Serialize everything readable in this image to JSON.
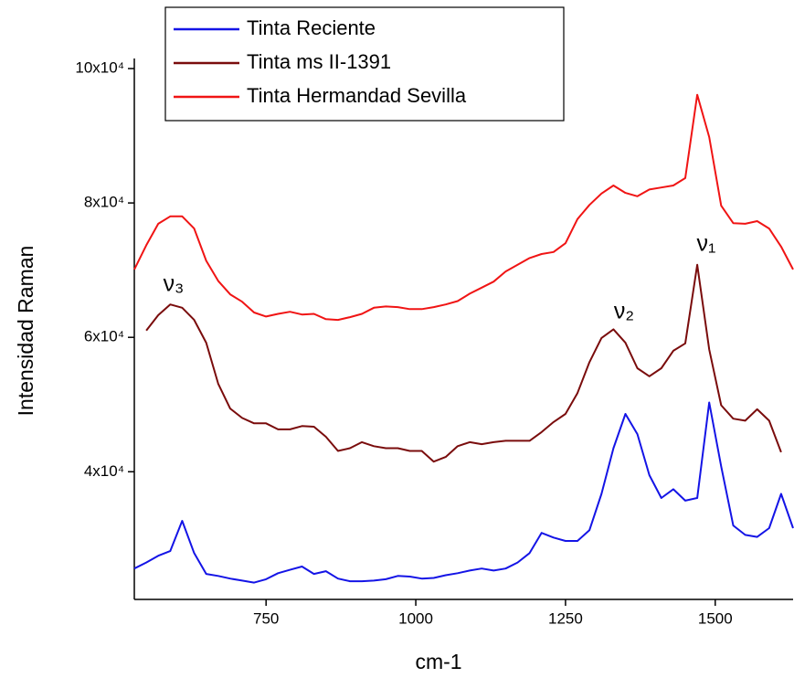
{
  "chart_data": {
    "type": "line",
    "x_label": "cm-1",
    "y_label": "Intensidad Raman",
    "x": [
      530,
      550,
      570,
      590,
      610,
      630,
      650,
      670,
      690,
      710,
      730,
      750,
      770,
      790,
      810,
      830,
      850,
      870,
      890,
      910,
      930,
      950,
      970,
      990,
      1010,
      1030,
      1050,
      1070,
      1090,
      1110,
      1130,
      1150,
      1170,
      1190,
      1210,
      1230,
      1250,
      1270,
      1290,
      1310,
      1330,
      1350,
      1370,
      1390,
      1410,
      1430,
      1450,
      1470,
      1490,
      1510,
      1530,
      1550,
      1570,
      1590,
      1610,
      1630
    ],
    "series": [
      {
        "name": "Tinta Reciente",
        "color": "#1414e6",
        "values": [
          25600,
          26500,
          27500,
          28200,
          32700,
          27900,
          24800,
          24500,
          24100,
          23800,
          23500,
          24000,
          24900,
          25400,
          25900,
          24800,
          25200,
          24100,
          23700,
          23700,
          23800,
          24000,
          24500,
          24400,
          24100,
          24200,
          24600,
          24900,
          25300,
          25600,
          25300,
          25600,
          26500,
          27900,
          30900,
          30200,
          29700,
          29700,
          31300,
          36700,
          43500,
          48600,
          45600,
          39500,
          36100,
          37400,
          35700,
          36100,
          50300,
          40800,
          32000,
          30600,
          30300,
          31600,
          36700,
          31600
        ]
      },
      {
        "name": "Tinta ms II-1391",
        "color": "#7a0c0c",
        "values": [
          null,
          61000,
          63300,
          64900,
          64400,
          62600,
          59200,
          53100,
          49400,
          48000,
          47200,
          47200,
          46300,
          46300,
          46800,
          46700,
          45200,
          43100,
          43500,
          44400,
          43800,
          43500,
          43500,
          43100,
          43100,
          41500,
          42200,
          43800,
          44400,
          44100,
          44400,
          44600,
          44600,
          44600,
          45900,
          47400,
          48600,
          51700,
          56300,
          59900,
          61200,
          59200,
          55400,
          54200,
          55400,
          58000,
          59100,
          70800,
          58200,
          49900,
          47900,
          47600,
          49300,
          47600,
          42900,
          null
        ]
      },
      {
        "name": "Tinta Hermandad Sevilla",
        "color": "#f01414",
        "values": [
          70100,
          73700,
          76900,
          78000,
          78000,
          76200,
          71400,
          68400,
          66400,
          65300,
          63700,
          63100,
          63500,
          63800,
          63400,
          63500,
          62700,
          62600,
          63000,
          63500,
          64400,
          64600,
          64500,
          64200,
          64200,
          64500,
          64900,
          65400,
          66500,
          67400,
          68300,
          69800,
          70800,
          71800,
          72400,
          72700,
          74000,
          77600,
          79700,
          81400,
          82600,
          81500,
          81000,
          82000,
          82300,
          82600,
          83700,
          96100,
          89800,
          79600,
          77000,
          76900,
          77300,
          76200,
          73500,
          70100
        ]
      }
    ],
    "annotations": [
      "ν₃",
      "ν₂",
      "ν₁"
    ],
    "xlim": [
      530,
      1630
    ],
    "xticks": [
      750,
      1000,
      1250,
      1500
    ],
    "ylim": [
      21000,
      101500
    ],
    "yticks": [
      {
        "value": 40000,
        "label": "4x10⁴"
      },
      {
        "value": 60000,
        "label": "6x10⁴"
      },
      {
        "value": 80000,
        "label": "8x10⁴"
      },
      {
        "value": 100000,
        "label": "10x10⁴"
      }
    ],
    "grid": false,
    "legend": "top-left"
  }
}
